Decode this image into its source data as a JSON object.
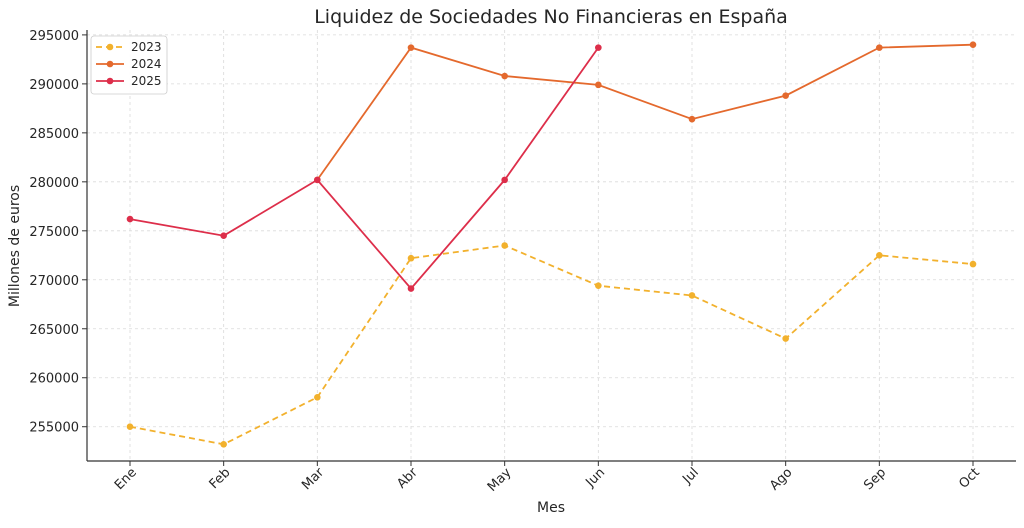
{
  "chart_data": {
    "type": "line",
    "title": "Liquidez de Sociedades No Financieras en España",
    "xlabel": "Mes",
    "ylabel": "Millones de euros",
    "categories": [
      "Ene",
      "Feb",
      "Mar",
      "Abr",
      "May",
      "Jun",
      "Jul",
      "Ago",
      "Sep",
      "Oct"
    ],
    "y_ticks": [
      255000,
      260000,
      265000,
      270000,
      275000,
      280000,
      285000,
      290000,
      295000
    ],
    "ylim": [
      251500,
      295500
    ],
    "grid": true,
    "legend_position": "top-left",
    "series": [
      {
        "name": "2023",
        "color": "#f2b12d",
        "dashed": true,
        "values": [
          255000,
          253200,
          258000,
          272200,
          273500,
          269400,
          268400,
          264000,
          272500,
          271600
        ]
      },
      {
        "name": "2024",
        "color": "#e4692d",
        "dashed": false,
        "values": [
          null,
          null,
          280200,
          293700,
          290800,
          289900,
          286400,
          288800,
          293700,
          294000
        ]
      },
      {
        "name": "2025",
        "color": "#dd2e4a",
        "dashed": false,
        "values": [
          276200,
          274500,
          280200,
          269100,
          280200,
          293700,
          null,
          null,
          null,
          null
        ]
      }
    ]
  }
}
